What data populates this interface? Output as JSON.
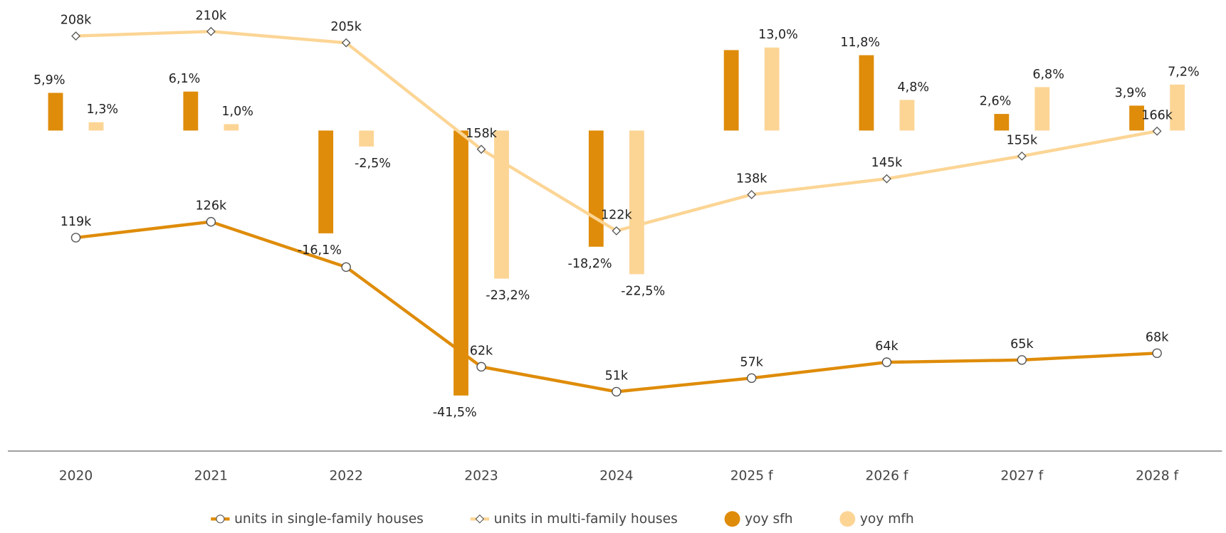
{
  "chart_data": {
    "type": "combo",
    "categories": [
      "2020",
      "2021",
      "2022",
      "2023",
      "2024",
      "2025 f",
      "2026 f",
      "2027 f",
      "2028 f"
    ],
    "ylim": [
      -48,
      18
    ],
    "y2lim": [
      31000,
      217000
    ],
    "series": [
      {
        "name": "units in single-family houses",
        "type": "line",
        "axis": "y2",
        "color": "#df8c0a",
        "marker": "circle",
        "values": [
          119000,
          126000,
          106000,
          62000,
          51000,
          57000,
          64000,
          65000,
          68000
        ],
        "value_labels": [
          "119k",
          "126k",
          null,
          "62k",
          "51k",
          "57k",
          "64k",
          "65k",
          "68k"
        ]
      },
      {
        "name": "units in multi-family houses",
        "type": "line",
        "axis": "y2",
        "color": "#fcd595",
        "marker": "diamond",
        "values": [
          208000,
          210000,
          205000,
          158000,
          122000,
          138000,
          145000,
          155000,
          166000
        ],
        "value_labels": [
          "208k",
          "210k",
          "205k",
          "158k",
          "122k",
          "138k",
          "145k",
          "155k",
          "166k"
        ]
      },
      {
        "name": "yoy sfh",
        "type": "bar",
        "color": "#df8c0a",
        "values": [
          5.9,
          6.1,
          -16.1,
          -41.5,
          -18.2,
          12.6,
          11.8,
          2.6,
          3.9
        ],
        "value_labels": [
          "5,9%",
          "6,1%",
          "-16,1%",
          "-41,5%",
          "-18,2%",
          null,
          "11,8%",
          "2,6%",
          "3,9%"
        ]
      },
      {
        "name": "yoy mfh",
        "type": "bar",
        "color": "#fcd595",
        "values": [
          1.3,
          1.0,
          -2.5,
          -23.2,
          -22.5,
          13.0,
          4.8,
          6.8,
          7.2
        ],
        "value_labels": [
          "1,3%",
          "1,0%",
          "-2,5%",
          "-23,2%",
          "-22,5%",
          "13,0%",
          "4,8%",
          "6,8%",
          "7,2%"
        ]
      }
    ]
  }
}
